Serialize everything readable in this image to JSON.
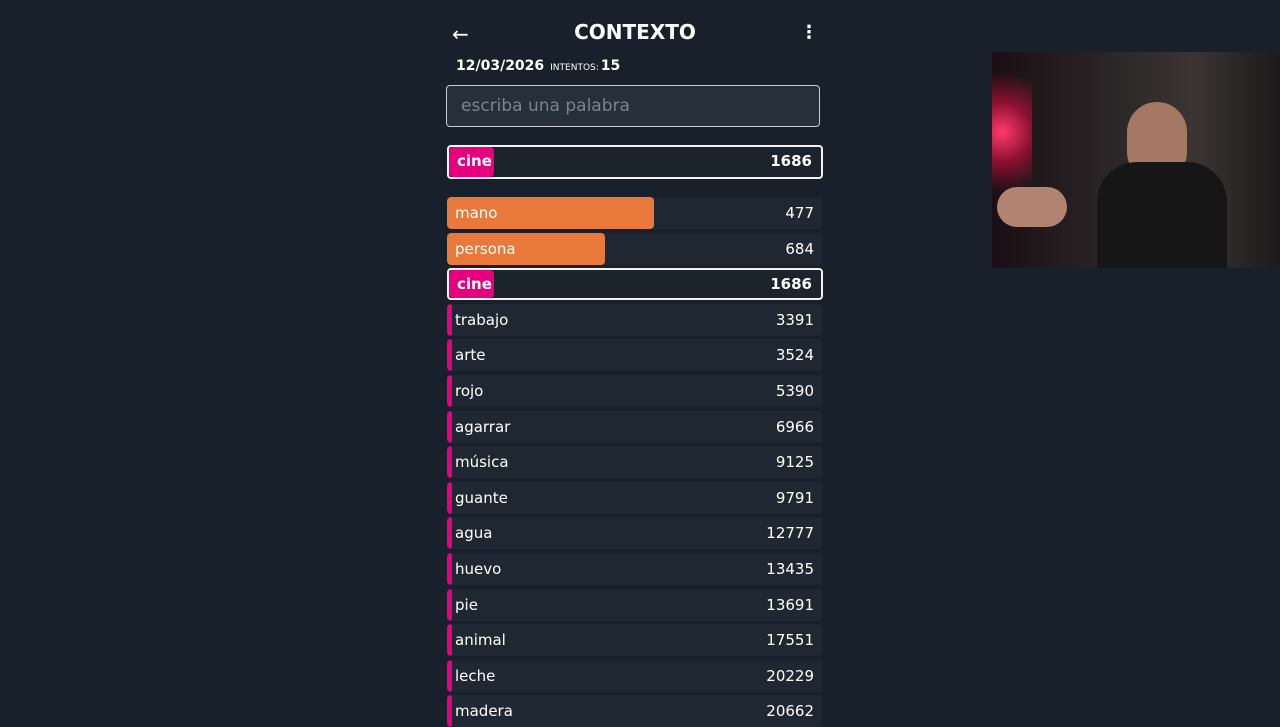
{
  "header": {
    "title": "CONTEXTO",
    "back_icon": "arrow-left-icon",
    "menu_icon": "more-vertical-icon"
  },
  "meta": {
    "date": "12/03/2026",
    "attempts_label": "INTENTOS:",
    "attempts": "15"
  },
  "search": {
    "placeholder": "escriba una palabra",
    "value": ""
  },
  "colors": {
    "close": "#e8793a",
    "far": "#e6007e",
    "background": "#18212b"
  },
  "last_guess": {
    "word": "cine",
    "rank": "1686",
    "fill": 0.12
  },
  "guesses": [
    {
      "word": "mano",
      "rank": "477",
      "color": "close",
      "fill": 0.55
    },
    {
      "word": "persona",
      "rank": "684",
      "color": "close",
      "fill": 0.42
    },
    {
      "word": "cine",
      "rank": "1686",
      "color": "far",
      "fill": 0.12,
      "selected": true
    },
    {
      "word": "trabajo",
      "rank": "3391",
      "color": "far",
      "fill": 0.01
    },
    {
      "word": "arte",
      "rank": "3524",
      "color": "far",
      "fill": 0.01
    },
    {
      "word": "rojo",
      "rank": "5390",
      "color": "far",
      "fill": 0.01
    },
    {
      "word": "agarrar",
      "rank": "6966",
      "color": "far",
      "fill": 0.01
    },
    {
      "word": "música",
      "rank": "9125",
      "color": "far",
      "fill": 0.01
    },
    {
      "word": "guante",
      "rank": "9791",
      "color": "far",
      "fill": 0.01
    },
    {
      "word": "agua",
      "rank": "12777",
      "color": "far",
      "fill": 0.01
    },
    {
      "word": "huevo",
      "rank": "13435",
      "color": "far",
      "fill": 0.01
    },
    {
      "word": "pie",
      "rank": "13691",
      "color": "far",
      "fill": 0.01
    },
    {
      "word": "animal",
      "rank": "17551",
      "color": "far",
      "fill": 0.01
    },
    {
      "word": "leche",
      "rank": "20229",
      "color": "far",
      "fill": 0.01
    },
    {
      "word": "madera",
      "rank": "20662",
      "color": "far",
      "fill": 0.01
    }
  ]
}
